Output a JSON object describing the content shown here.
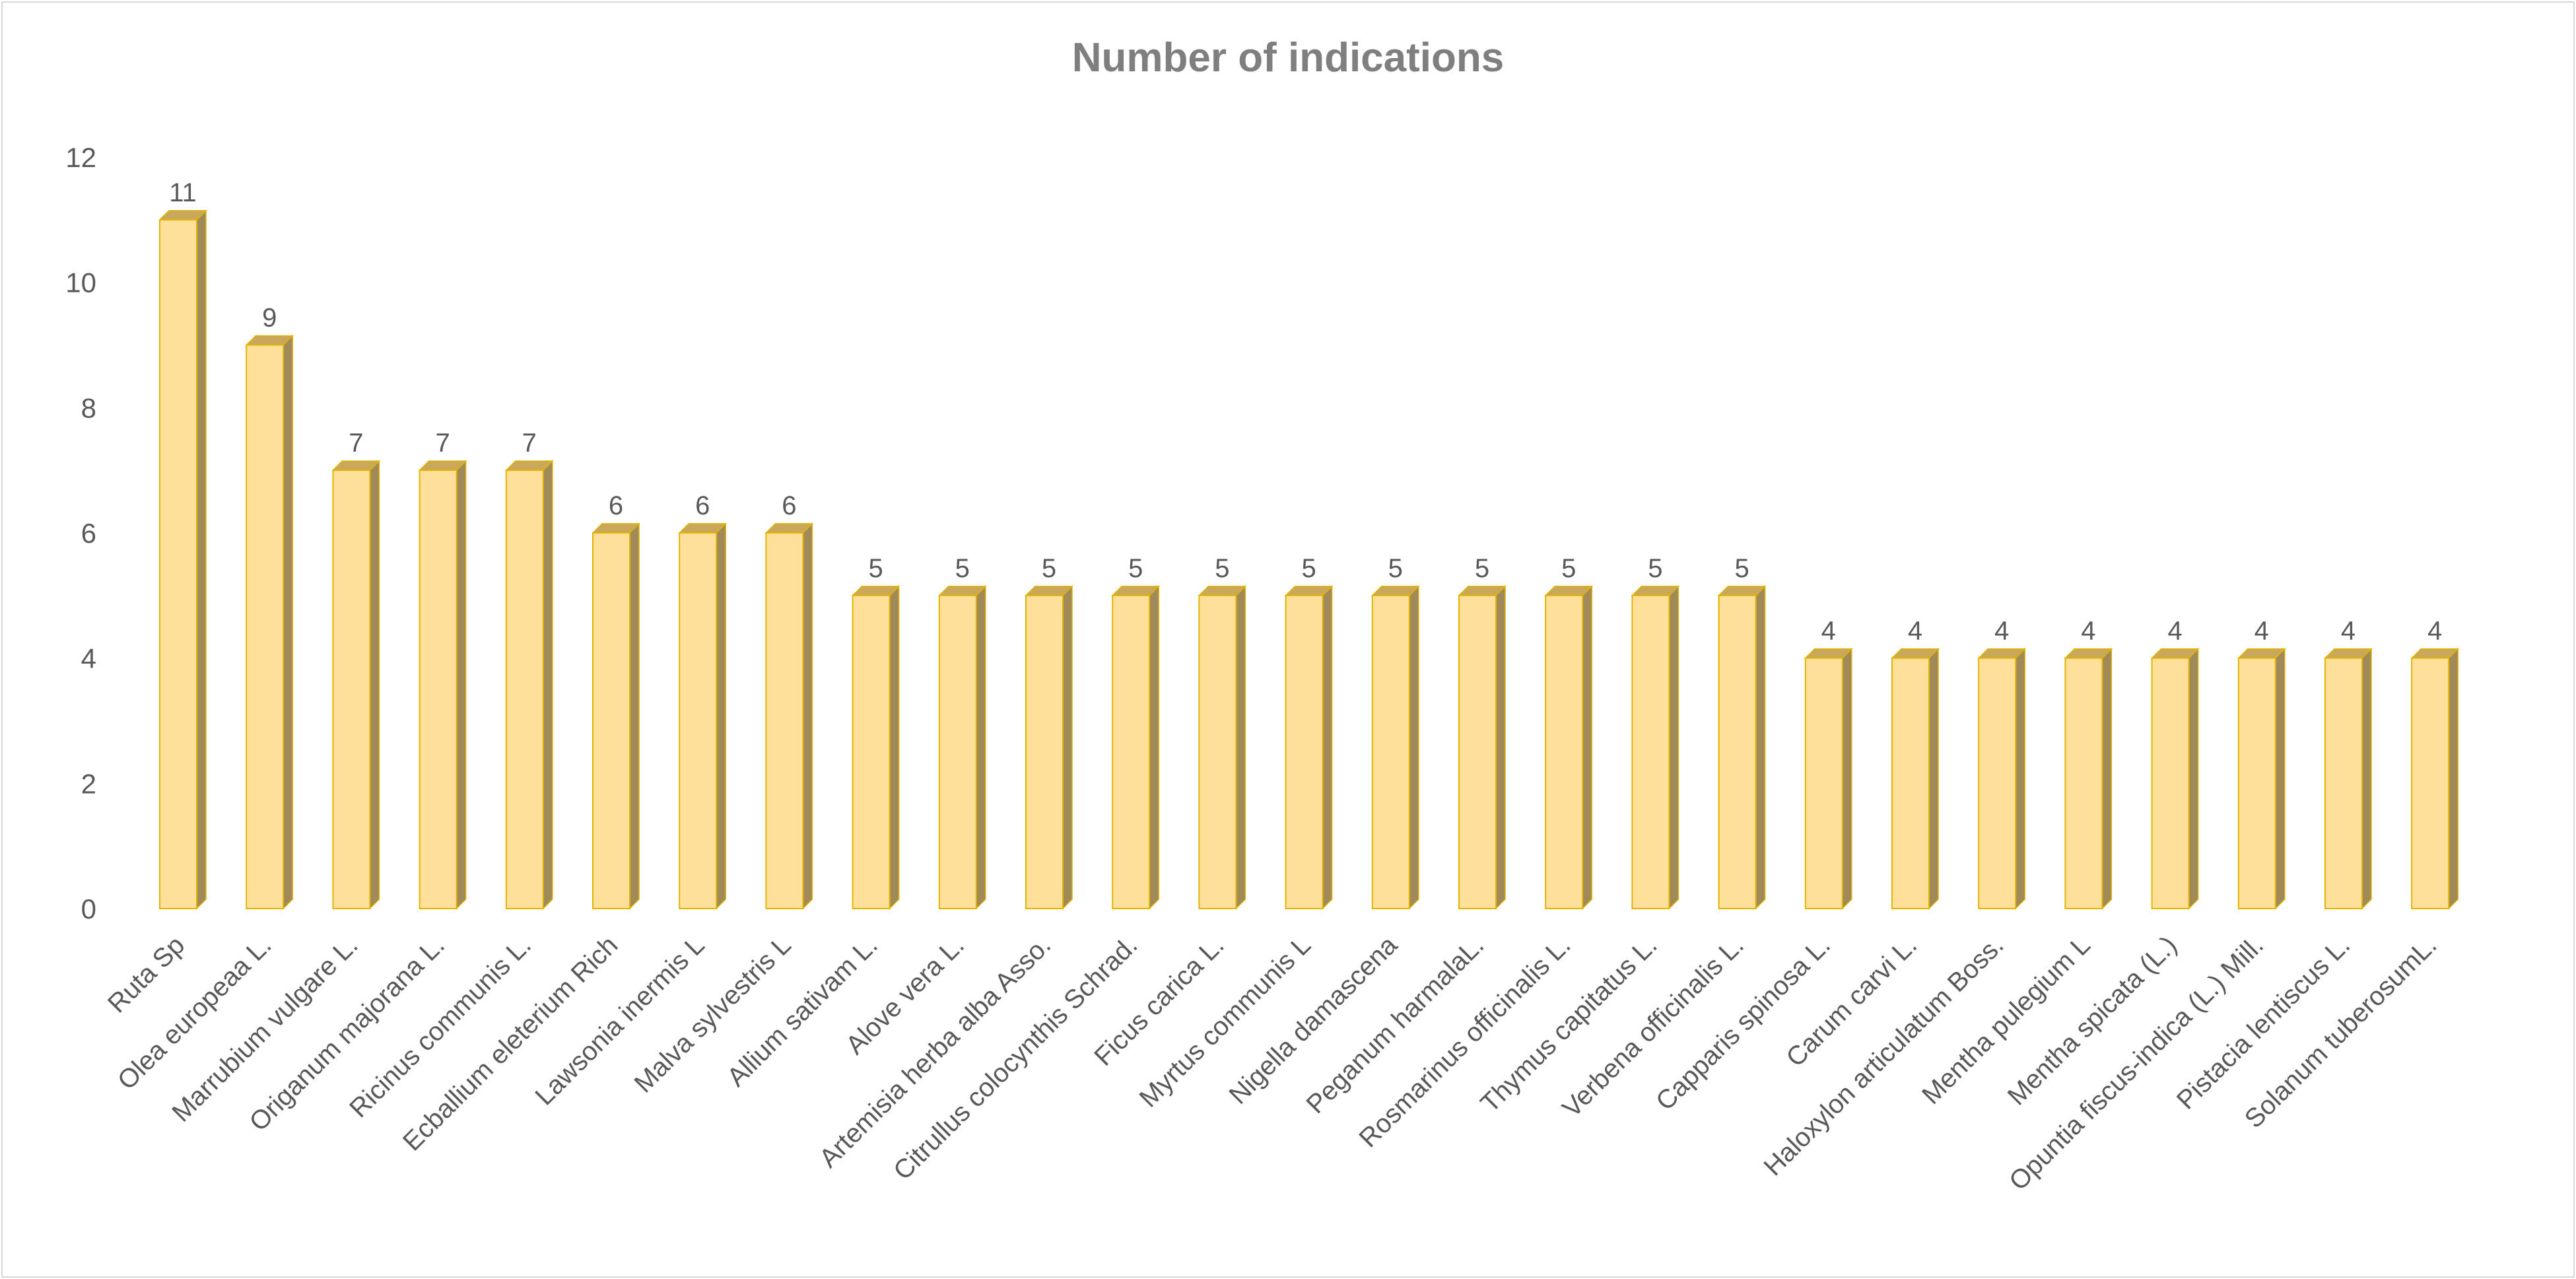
{
  "chart_data": {
    "type": "bar",
    "title": "Number of indications",
    "xlabel": "",
    "ylabel": "",
    "ylim": [
      0,
      12
    ],
    "yticks": [
      0,
      2,
      4,
      6,
      8,
      10,
      12
    ],
    "grid": false,
    "legend": "none",
    "style": "3d-column",
    "colors": {
      "bar_front": "#FFE09B",
      "bar_edge": "#E2B400",
      "bar_top": "#C9A85C",
      "bar_side": "#A08A5A",
      "text": "#595959",
      "title": "#7F7F7F"
    },
    "categories": [
      "Ruta Sp",
      "Olea europeaa L.",
      "Marrubium vulgare L.",
      "Origanum majorana L.",
      "Ricinus communis L.",
      "Ecballium eleterium Rich",
      "Lawsonia inermis L",
      "Malva sylvestris L",
      "Allium sativam L.",
      "Alove vera L.",
      "Artemisia herba alba Asso.",
      "Citrullus colocynthis Schrad.",
      "Ficus carica L.",
      "Myrtus communis L",
      "Nigella damascena",
      "Peganum harmalaL.",
      "Rosmarinus officinalis L.",
      "Thymus capitatus L.",
      "Verbena officinalis L.",
      "Capparis spinosa L.",
      "Carum carvi L.",
      "Haloxylon articulatum Boss.",
      "Mentha pulegium L",
      "Mentha spicata (L.)",
      "Opuntia fiscus-indica (L.) Mill.",
      "Pistacia lentiscus L.",
      "Solanum tuberosumL."
    ],
    "values": [
      11,
      9,
      7,
      7,
      7,
      6,
      6,
      6,
      5,
      5,
      5,
      5,
      5,
      5,
      5,
      5,
      5,
      5,
      5,
      4,
      4,
      4,
      4,
      4,
      4,
      4,
      4
    ]
  }
}
